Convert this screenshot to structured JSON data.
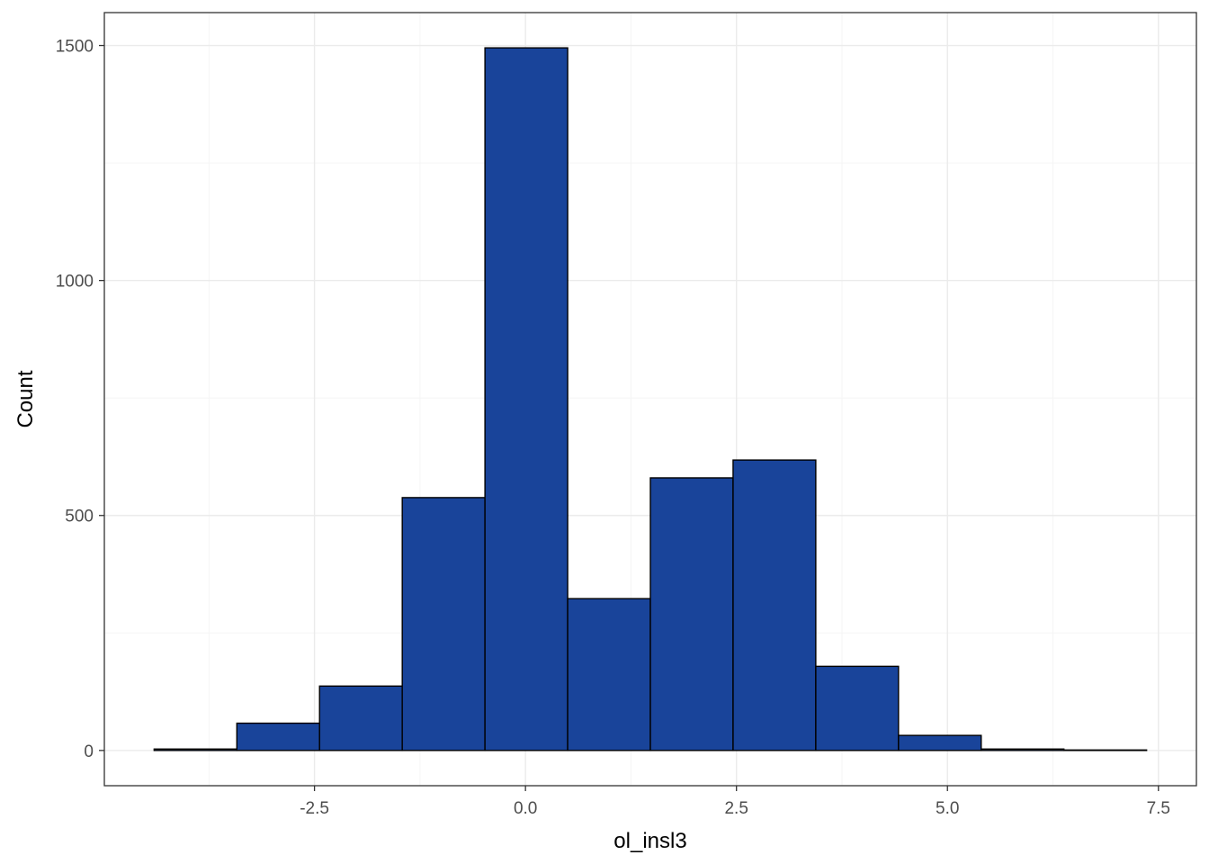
{
  "chart_data": {
    "type": "bar",
    "subtype": "histogram",
    "title": "",
    "xlabel": "ol_insl3",
    "ylabel": "Count",
    "bin_width": 0.982,
    "bins": [
      {
        "x0": -4.4,
        "x1": -3.42,
        "count": 3
      },
      {
        "x0": -3.42,
        "x1": -2.44,
        "count": 58
      },
      {
        "x0": -2.44,
        "x1": -1.46,
        "count": 137
      },
      {
        "x0": -1.46,
        "x1": -0.48,
        "count": 538
      },
      {
        "x0": -0.48,
        "x1": 0.5,
        "count": 1495
      },
      {
        "x0": 0.5,
        "x1": 1.48,
        "count": 323
      },
      {
        "x0": 1.48,
        "x1": 2.46,
        "count": 580
      },
      {
        "x0": 2.46,
        "x1": 3.44,
        "count": 618
      },
      {
        "x0": 3.44,
        "x1": 4.42,
        "count": 179
      },
      {
        "x0": 4.42,
        "x1": 5.4,
        "count": 32
      },
      {
        "x0": 5.4,
        "x1": 6.38,
        "count": 3
      },
      {
        "x0": 6.38,
        "x1": 7.36,
        "count": 1
      }
    ],
    "x_ticks": [
      -2.5,
      0.0,
      2.5,
      5.0,
      7.5
    ],
    "x_tick_labels": [
      "-2.5",
      "0.0",
      "2.5",
      "5.0",
      "7.5"
    ],
    "y_ticks": [
      0,
      500,
      1000,
      1500
    ],
    "y_tick_labels": [
      "0",
      "500",
      "1000",
      "1500"
    ],
    "xlim": [
      -4.99,
      7.95
    ],
    "ylim": [
      -75,
      1570
    ],
    "grid": true,
    "legend": "none",
    "colors": {
      "bar_fill": "#19449A",
      "bar_stroke": "#000000",
      "grid_major": "#EBEBEB",
      "grid_minor": "#F5F5F5",
      "panel_border": "#333333"
    }
  }
}
